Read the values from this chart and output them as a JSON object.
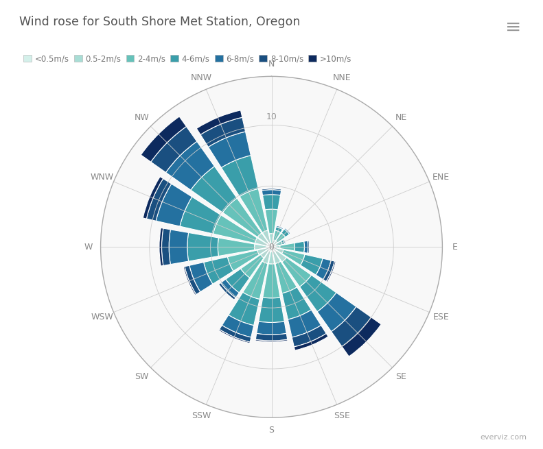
{
  "title": "Wind rose for South Shore Met Station, Oregon",
  "background_color": "#ffffff",
  "directions": [
    "N",
    "NNE",
    "NE",
    "ENE",
    "E",
    "ESE",
    "SE",
    "SSE",
    "S",
    "SSW",
    "SW",
    "WSW",
    "W",
    "WNW",
    "NW",
    "NNW"
  ],
  "speed_labels": [
    "<0.5m/s",
    "0.5-2m/s",
    "2-4m/s",
    "4-6m/s",
    "6-8m/s",
    "8-10m/s",
    ">10m/s"
  ],
  "speed_colors": [
    "#d4f0ea",
    "#a8ddd5",
    "#66c2ba",
    "#3a9eaa",
    "#2471a0",
    "#1a4f80",
    "#0d2a5e"
  ],
  "rmax": 14,
  "wind_data": {
    "N": [
      0.3,
      0.8,
      2.0,
      1.2,
      0.4,
      0.1,
      0.0
    ],
    "NNE": [
      0.2,
      0.4,
      0.8,
      0.3,
      0.1,
      0.0,
      0.0
    ],
    "NE": [
      0.2,
      0.4,
      0.8,
      0.4,
      0.1,
      0.0,
      0.0
    ],
    "ENE": [
      0.1,
      0.3,
      0.5,
      0.2,
      0.1,
      0.0,
      0.0
    ],
    "E": [
      0.2,
      0.5,
      1.2,
      0.8,
      0.3,
      0.1,
      0.0
    ],
    "ESE": [
      0.3,
      0.7,
      1.8,
      1.5,
      0.7,
      0.3,
      0.1
    ],
    "SE": [
      0.5,
      1.0,
      2.5,
      2.5,
      2.0,
      1.5,
      1.0
    ],
    "SSE": [
      0.4,
      1.0,
      2.5,
      2.2,
      1.5,
      0.8,
      0.3
    ],
    "S": [
      0.4,
      1.0,
      2.8,
      2.0,
      1.0,
      0.5,
      0.1
    ],
    "SSW": [
      0.4,
      1.0,
      3.0,
      2.2,
      1.0,
      0.4,
      0.1
    ],
    "SW": [
      0.3,
      0.8,
      2.0,
      1.5,
      0.5,
      0.2,
      0.0
    ],
    "WSW": [
      0.3,
      0.9,
      2.5,
      2.0,
      1.2,
      0.4,
      0.1
    ],
    "W": [
      0.4,
      1.0,
      3.0,
      2.5,
      1.5,
      0.6,
      0.2
    ],
    "WNW": [
      0.4,
      1.0,
      3.5,
      2.8,
      2.0,
      0.8,
      0.3
    ],
    "NW": [
      0.4,
      1.0,
      3.5,
      3.2,
      2.5,
      1.5,
      1.0
    ],
    "NNW": [
      0.4,
      1.0,
      3.5,
      2.8,
      2.0,
      1.2,
      0.6
    ]
  }
}
